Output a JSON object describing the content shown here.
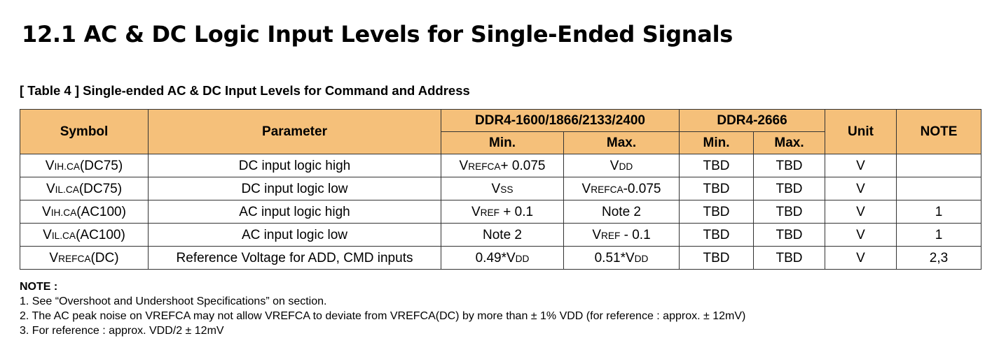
{
  "title": "12.1 AC & DC Logic Input Levels for Single-Ended Signals",
  "caption": "[ Table 4 ] Single-ended AC & DC Input Levels for Command and Address",
  "headers": {
    "symbol": "Symbol",
    "parameter": "Parameter",
    "group1": "DDR4-1600/1866/2133/2400",
    "group2": "DDR4-2666",
    "min": "Min.",
    "max": "Max.",
    "unit": "Unit",
    "note": "NOTE"
  },
  "rows": [
    {
      "sym_main": "V",
      "sym_sub": "IH.CA",
      "sym_tail": "(DC75)",
      "parameter": "DC input logic high",
      "min_a": "V",
      "min_b": "REFCA",
      "min_c": "+ 0.075",
      "max_a": "V",
      "max_b": "DD",
      "max_c": "",
      "min2": "TBD",
      "max2": "TBD",
      "unit": "V",
      "note": ""
    },
    {
      "sym_main": "V",
      "sym_sub": "IL.CA",
      "sym_tail": "(DC75)",
      "parameter": "DC input logic low",
      "min_a": "V",
      "min_b": "SS",
      "min_c": "",
      "max_a": "V",
      "max_b": "REFCA",
      "max_c": "-0.075",
      "min2": "TBD",
      "max2": "TBD",
      "unit": "V",
      "note": ""
    },
    {
      "sym_main": "V",
      "sym_sub": "IH.CA",
      "sym_tail": "(AC100)",
      "parameter": "AC input logic high",
      "min_a": "V",
      "min_b": "REF",
      "min_c": " + 0.1",
      "max_a": "Note 2",
      "max_b": "",
      "max_c": "",
      "min2": "TBD",
      "max2": "TBD",
      "unit": "V",
      "note": "1"
    },
    {
      "sym_main": "V",
      "sym_sub": "IL.CA",
      "sym_tail": "(AC100)",
      "parameter": "AC input logic low",
      "min_a": "Note 2",
      "min_b": "",
      "min_c": "",
      "max_a": "V",
      "max_b": "REF",
      "max_c": " - 0.1",
      "min2": "TBD",
      "max2": "TBD",
      "unit": "V",
      "note": "1"
    },
    {
      "sym_main": "V",
      "sym_sub": "REFCA",
      "sym_tail": "(DC)",
      "parameter": "Reference Voltage for ADD, CMD inputs",
      "min_a": "0.49*V",
      "min_b": "DD",
      "min_c": "",
      "max_a": "0.51*V",
      "max_b": "DD",
      "max_c": "",
      "min2": "TBD",
      "max2": "TBD",
      "unit": "V",
      "note": "2,3"
    }
  ],
  "notes": {
    "title": "NOTE :",
    "items": [
      "1. See “Overshoot and Undershoot Specifications” on section.",
      "2. The AC peak noise on VREFCA may not allow VREFCA to deviate from VREFCA(DC) by more than ± 1% VDD (for reference : approx. ± 12mV)",
      "3. For reference : approx. VDD/2 ± 12mV"
    ]
  }
}
